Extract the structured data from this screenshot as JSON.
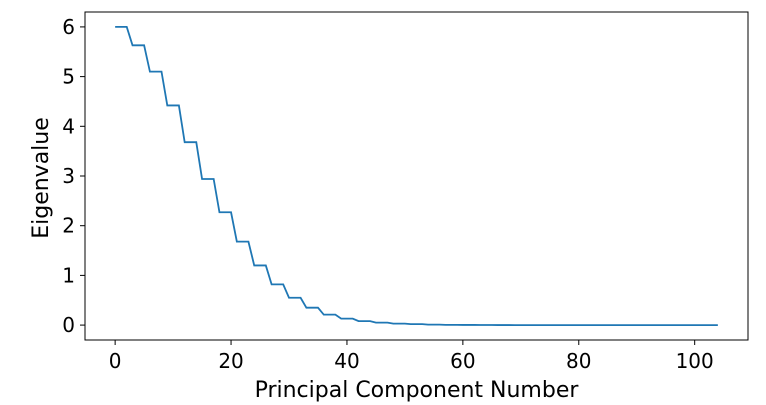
{
  "chart_data": {
    "type": "line",
    "xlabel": "Principal Component Number",
    "ylabel": "Eigenvalue",
    "xlim": [
      -5.2,
      109.2
    ],
    "ylim": [
      -0.3,
      6.3
    ],
    "xticks": [
      0,
      20,
      40,
      60,
      80,
      100
    ],
    "yticks": [
      0,
      1,
      2,
      3,
      4,
      5,
      6
    ],
    "grid": false,
    "line_color": "#1f77b4",
    "series": [
      {
        "x": [
          0,
          1,
          2,
          3,
          4,
          5,
          6,
          7,
          8,
          9,
          10,
          11,
          12,
          13,
          14,
          15,
          16,
          17,
          18,
          19,
          20,
          21,
          22,
          23,
          24,
          25,
          26,
          27,
          28,
          29,
          30,
          31,
          32,
          33,
          34,
          35,
          36,
          37,
          38,
          39,
          40,
          41,
          42,
          43,
          44,
          45,
          46,
          47,
          48,
          49,
          50,
          51,
          52,
          53,
          54,
          55,
          56,
          57,
          58,
          59,
          60,
          61,
          62,
          63,
          64,
          65,
          66,
          67,
          68,
          69,
          70,
          71,
          72,
          73,
          74,
          75,
          76,
          77,
          78,
          79,
          80,
          81,
          82,
          83,
          84,
          85,
          86,
          87,
          88,
          89,
          90,
          91,
          92,
          93,
          94,
          95,
          96,
          97,
          98,
          99,
          100,
          101,
          102,
          103,
          104
        ],
        "y": [
          6.0,
          6.0,
          6.0,
          5.63,
          5.63,
          5.63,
          5.1,
          5.1,
          5.1,
          4.42,
          4.42,
          4.42,
          3.68,
          3.68,
          3.68,
          2.94,
          2.94,
          2.94,
          2.27,
          2.27,
          2.27,
          1.68,
          1.68,
          1.68,
          1.2,
          1.2,
          1.2,
          0.82,
          0.82,
          0.82,
          0.55,
          0.55,
          0.55,
          0.35,
          0.35,
          0.35,
          0.21,
          0.21,
          0.21,
          0.13,
          0.13,
          0.13,
          0.08,
          0.08,
          0.08,
          0.05,
          0.05,
          0.05,
          0.03,
          0.03,
          0.03,
          0.02,
          0.02,
          0.02,
          0.01,
          0.01,
          0.01,
          0.005,
          0.005,
          0.005,
          0.003,
          0.003,
          0.003,
          0.002,
          0.002,
          0.002,
          0.001,
          0.001,
          0.001,
          0,
          0,
          0,
          0,
          0,
          0,
          0,
          0,
          0,
          0,
          0,
          0,
          0,
          0,
          0,
          0,
          0,
          0,
          0,
          0,
          0,
          0,
          0,
          0,
          0,
          0,
          0,
          0,
          0,
          0,
          0,
          0,
          0,
          0,
          0,
          0
        ]
      }
    ]
  }
}
